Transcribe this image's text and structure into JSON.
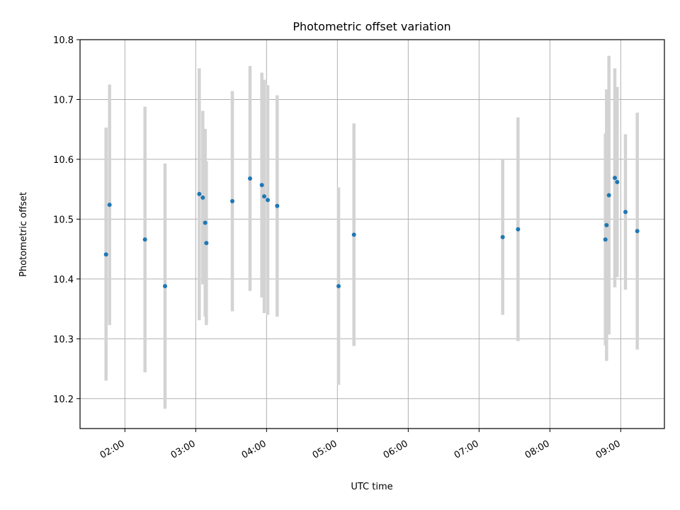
{
  "chart_data": {
    "type": "scatter",
    "title": "Photometric offset variation",
    "xlabel": "UTC time",
    "ylabel": "Photometric offset",
    "x_format": "HH:MM",
    "xlim": [
      "01:22",
      "09:37"
    ],
    "ylim": [
      10.15,
      10.8
    ],
    "grid": true,
    "x_ticks": [
      "02:00",
      "03:00",
      "04:00",
      "05:00",
      "06:00",
      "07:00",
      "08:00",
      "09:00"
    ],
    "y_ticks": [
      10.2,
      10.3,
      10.4,
      10.5,
      10.6,
      10.7,
      10.8
    ],
    "y_tick_labels": [
      "10.2",
      "10.3",
      "10.4",
      "10.5",
      "10.6",
      "10.7",
      "10.8"
    ],
    "colors": {
      "point": "#1f77b4",
      "errorbar": "#d3d3d3",
      "grid": "#b0b0b0"
    },
    "series": [
      {
        "points": [
          {
            "x": "01:44",
            "y": 10.441,
            "low": 10.23,
            "high": 10.653
          },
          {
            "x": "01:47",
            "y": 10.524,
            "low": 10.323,
            "high": 10.725
          },
          {
            "x": "02:17",
            "y": 10.466,
            "low": 10.244,
            "high": 10.688
          },
          {
            "x": "02:34",
            "y": 10.388,
            "low": 10.183,
            "high": 10.593
          },
          {
            "x": "03:03",
            "y": 10.542,
            "low": 10.331,
            "high": 10.752
          },
          {
            "x": "03:06",
            "y": 10.536,
            "low": 10.391,
            "high": 10.681
          },
          {
            "x": "03:08",
            "y": 10.494,
            "low": 10.337,
            "high": 10.651
          },
          {
            "x": "03:09",
            "y": 10.46,
            "low": 10.323,
            "high": 10.597
          },
          {
            "x": "03:31",
            "y": 10.53,
            "low": 10.346,
            "high": 10.714
          },
          {
            "x": "03:46",
            "y": 10.568,
            "low": 10.38,
            "high": 10.756
          },
          {
            "x": "03:56",
            "y": 10.557,
            "low": 10.369,
            "high": 10.745
          },
          {
            "x": "03:58",
            "y": 10.538,
            "low": 10.343,
            "high": 10.733
          },
          {
            "x": "04:01",
            "y": 10.532,
            "low": 10.34,
            "high": 10.724
          },
          {
            "x": "04:09",
            "y": 10.522,
            "low": 10.337,
            "high": 10.707
          },
          {
            "x": "05:01",
            "y": 10.388,
            "low": 10.223,
            "high": 10.553
          },
          {
            "x": "05:14",
            "y": 10.474,
            "low": 10.288,
            "high": 10.66
          },
          {
            "x": "07:20",
            "y": 10.47,
            "low": 10.34,
            "high": 10.6
          },
          {
            "x": "07:33",
            "y": 10.483,
            "low": 10.296,
            "high": 10.67
          },
          {
            "x": "08:47",
            "y": 10.466,
            "low": 10.289,
            "high": 10.643
          },
          {
            "x": "08:48",
            "y": 10.49,
            "low": 10.263,
            "high": 10.717
          },
          {
            "x": "08:50",
            "y": 10.54,
            "low": 10.307,
            "high": 10.773
          },
          {
            "x": "08:55",
            "y": 10.569,
            "low": 10.386,
            "high": 10.752
          },
          {
            "x": "08:57",
            "y": 10.562,
            "low": 10.403,
            "high": 10.721
          },
          {
            "x": "09:04",
            "y": 10.512,
            "low": 10.382,
            "high": 10.642
          },
          {
            "x": "09:14",
            "y": 10.48,
            "low": 10.282,
            "high": 10.678
          }
        ]
      }
    ]
  }
}
